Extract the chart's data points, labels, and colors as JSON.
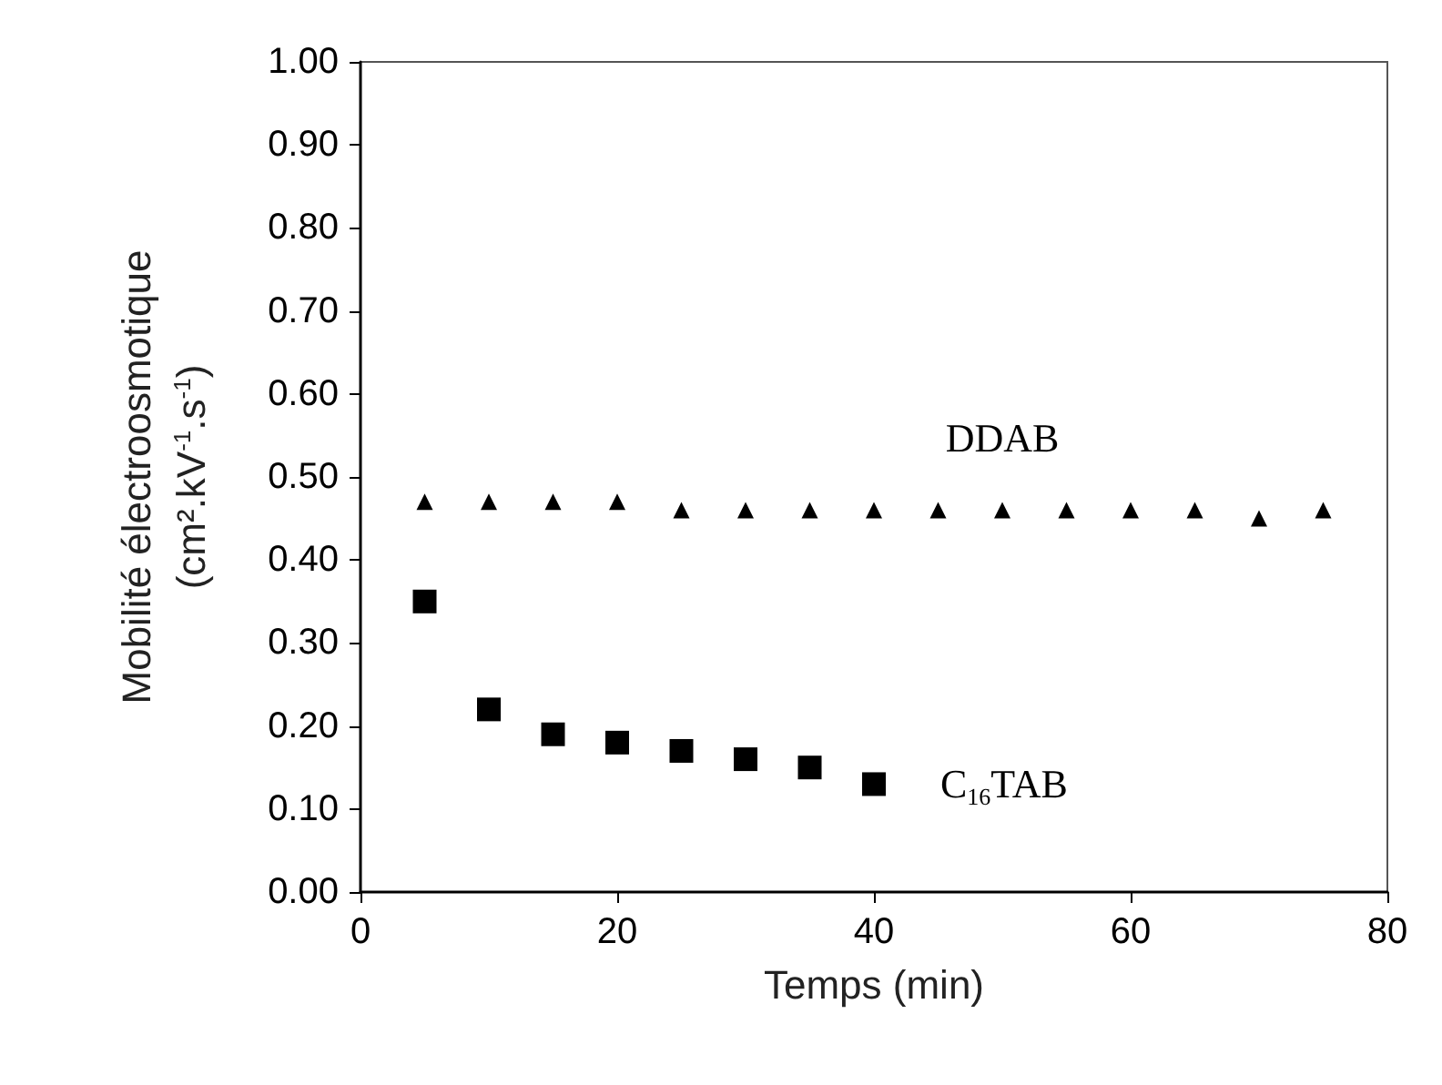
{
  "chart_data": {
    "type": "scatter",
    "xlabel": "Temps (min)",
    "ylabel": "Mobilité électroosmotique\n(cm².kV$^{-1}$.s$^{-1}$)",
    "xlim": [
      0,
      80
    ],
    "xticks": [
      0,
      20,
      40,
      60,
      80
    ],
    "ylim": [
      0,
      1
    ],
    "yticks": [
      {
        "value": 0,
        "label": "0.00"
      },
      {
        "value": 0.1,
        "label": "0.10"
      },
      {
        "value": 0.2,
        "label": "0.20"
      },
      {
        "value": 0.3,
        "label": "0.30"
      },
      {
        "value": 0.4,
        "label": "0.40"
      },
      {
        "value": 0.5,
        "label": "0.50"
      },
      {
        "value": 0.6,
        "label": "0.60"
      },
      {
        "value": 0.7,
        "label": "0.70"
      },
      {
        "value": 0.8,
        "label": "0.80"
      },
      {
        "value": 0.9,
        "label": "0.90"
      },
      {
        "value": 1,
        "label": "1.00"
      }
    ],
    "legend": false,
    "grid": false,
    "series": [
      {
        "name": "DDAB",
        "color": "#000000",
        "marker": "triangle",
        "x": [
          5,
          10,
          15,
          20,
          25,
          30,
          35,
          40,
          45,
          50,
          55,
          60,
          65,
          70,
          75
        ],
        "values": [
          0.47,
          0.47,
          0.47,
          0.47,
          0.46,
          0.46,
          0.46,
          0.46,
          0.46,
          0.46,
          0.46,
          0.46,
          0.46,
          0.45,
          0.46
        ]
      },
      {
        "name": "C$_{16}$TAB",
        "color": "#000000",
        "marker": "square",
        "x": [
          5,
          10,
          15,
          20,
          25,
          30,
          35,
          40
        ],
        "values": [
          0.35,
          0.22,
          0.19,
          0.18,
          0.17,
          0.16,
          0.15,
          0.13
        ]
      }
    ]
  }
}
